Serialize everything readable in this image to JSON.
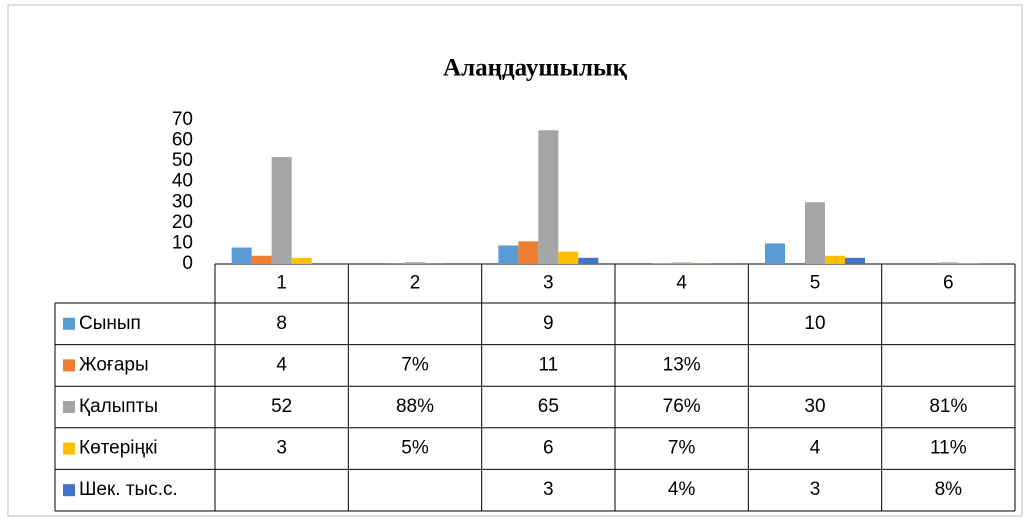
{
  "chart_data": {
    "type": "bar",
    "title": "Алаңдаушылық",
    "categories": [
      "1",
      "2",
      "3",
      "4",
      "5",
      "6"
    ],
    "series": [
      {
        "name": "Сынып",
        "color": "#5b9bd5",
        "values": [
          8,
          null,
          9,
          null,
          10,
          null
        ],
        "value_labels": [
          "8",
          null,
          "9",
          null,
          "10",
          null
        ]
      },
      {
        "name": "Жоғары",
        "color": "#ed7d31",
        "values": [
          4,
          0.07,
          11,
          0.13,
          null,
          null
        ],
        "value_labels": [
          "4",
          "7%",
          "11",
          "13%",
          null,
          null
        ]
      },
      {
        "name": "Қалыпты",
        "color": "#a5a5a5",
        "values": [
          52,
          0.88,
          65,
          0.76,
          30,
          0.81
        ],
        "value_labels": [
          "52",
          "88%",
          "65",
          "76%",
          "30",
          "81%"
        ]
      },
      {
        "name": "Көтеріңкі",
        "color": "#ffc000",
        "values": [
          3,
          0.05,
          6,
          0.07,
          4,
          0.11
        ],
        "value_labels": [
          "3",
          "5%",
          "6",
          "7%",
          "4",
          "11%"
        ]
      },
      {
        "name": "Шек. тыс.с.",
        "color": "#4472c4",
        "values": [
          null,
          null,
          3,
          0.04,
          3,
          0.08
        ],
        "value_labels": [
          null,
          null,
          "3",
          "4%",
          "3",
          "8%"
        ]
      }
    ],
    "ylim": [
      0,
      70
    ],
    "yticks": [
      0,
      10,
      20,
      30,
      40,
      50,
      60,
      70
    ],
    "grid": false,
    "legend": "table"
  }
}
